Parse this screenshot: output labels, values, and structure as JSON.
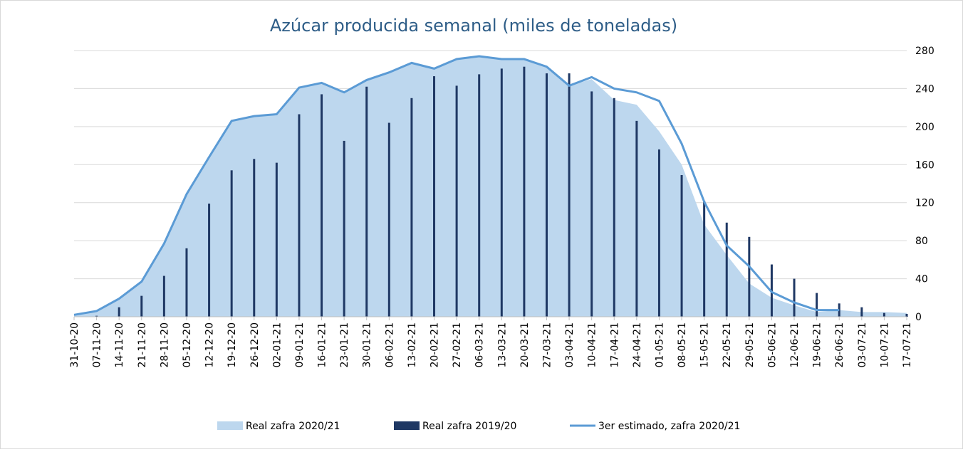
{
  "chart_data": {
    "type": "combo",
    "title": "Azúcar producida semanal (miles de toneladas)",
    "categories": [
      "31-10-20",
      "07-11-20",
      "14-11-20",
      "21-11-20",
      "28-11-20",
      "05-12-20",
      "12-12-20",
      "19-12-20",
      "26-12-20",
      "02-01-21",
      "09-01-21",
      "16-01-21",
      "23-01-21",
      "30-01-21",
      "06-02-21",
      "13-02-21",
      "20-02-21",
      "27-02-21",
      "06-03-21",
      "13-03-21",
      "20-03-21",
      "27-03-21",
      "03-04-21",
      "10-04-21",
      "17-04-21",
      "24-04-21",
      "01-05-21",
      "08-05-21",
      "15-05-21",
      "22-05-21",
      "29-05-21",
      "05-06-21",
      "12-06-21",
      "19-06-21",
      "26-06-21",
      "03-07-21",
      "10-07-21",
      "17-07-21"
    ],
    "series": [
      {
        "name": "Real zafra 2020/21",
        "kind": "area",
        "color": "#bdd7ee",
        "values": [
          2,
          6,
          19,
          37,
          77,
          129,
          168,
          206,
          211,
          213,
          241,
          246,
          236,
          249,
          257,
          267,
          261,
          271,
          274,
          271,
          271,
          263,
          243,
          250,
          228,
          223,
          195,
          160,
          97,
          65,
          35,
          20,
          12,
          5,
          7,
          5,
          5,
          4
        ]
      },
      {
        "name": "Real zafra 2019/20",
        "kind": "bar",
        "color": "#1f3864",
        "values": [
          0,
          1,
          10,
          22,
          43,
          72,
          119,
          154,
          166,
          162,
          213,
          234,
          185,
          242,
          204,
          230,
          253,
          243,
          255,
          261,
          263,
          256,
          256,
          237,
          230,
          206,
          176,
          149,
          122,
          99,
          84,
          55,
          40,
          25,
          14,
          10,
          4,
          3
        ]
      },
      {
        "name": "3er estimado, zafra 2020/21",
        "kind": "line",
        "color": "#5b9bd5",
        "values": [
          2,
          6,
          19,
          37,
          77,
          129,
          168,
          206,
          211,
          213,
          241,
          246,
          236,
          249,
          257,
          267,
          261,
          271,
          274,
          271,
          271,
          263,
          243,
          252,
          240,
          236,
          227,
          182,
          121,
          75,
          53,
          26,
          15,
          7,
          7,
          null,
          null,
          null
        ]
      }
    ],
    "ylim": [
      0,
      280
    ],
    "yticks": [
      0,
      40,
      80,
      120,
      160,
      200,
      240,
      280
    ],
    "grid": true,
    "legend": "bottom"
  }
}
